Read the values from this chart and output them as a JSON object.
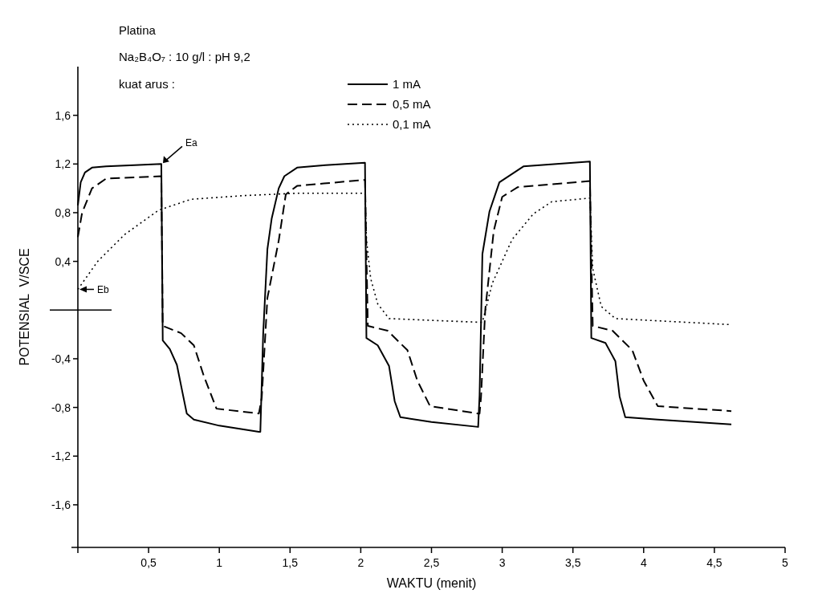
{
  "chart_data": {
    "type": "line",
    "title": "Platina",
    "subtitle": "Na₂B₄O₇ : 10 g/l : pH 9,2",
    "legend_title": "kuat arus :",
    "xlabel": "WAKTU (menit)",
    "ylabel": "POTENSIAL  V/SCE",
    "legend": "top",
    "marker": "none",
    "xlim": [
      0,
      5
    ],
    "ylim": [
      -1.95,
      2.0
    ],
    "xticks": [
      {
        "value": 0,
        "label": null
      },
      {
        "value": 0.5,
        "label": "0,5"
      },
      {
        "value": 1,
        "label": "1"
      },
      {
        "value": 1.5,
        "label": "1,5"
      },
      {
        "value": 2,
        "label": "2"
      },
      {
        "value": 2.5,
        "label": "2,5"
      },
      {
        "value": 3,
        "label": "3"
      },
      {
        "value": 3.5,
        "label": "3,5"
      },
      {
        "value": 4,
        "label": "4"
      },
      {
        "value": 4.5,
        "label": "4,5"
      },
      {
        "value": 5,
        "label": "5"
      }
    ],
    "yticks": [
      {
        "value": -1.6,
        "label": "-1,6"
      },
      {
        "value": -1.2,
        "label": "-1,2"
      },
      {
        "value": -0.8,
        "label": "-0,8"
      },
      {
        "value": -0.4,
        "label": "-0,4"
      },
      {
        "value": 0.4,
        "label": "0,4"
      },
      {
        "value": 0.8,
        "label": "0,8"
      },
      {
        "value": 1.2,
        "label": "1,2"
      },
      {
        "value": 1.6,
        "label": "1,6"
      }
    ],
    "annotations": [
      {
        "text": "Ea",
        "x": 0.59,
        "y": 1.2
      },
      {
        "text": "Eb",
        "x": 0,
        "y": 0.17
      }
    ],
    "series": [
      {
        "name": "1 mA",
        "color": "#000000",
        "line_style": "solid",
        "x": [
          0,
          0.02,
          0.05,
          0.1,
          0.2,
          0.4,
          0.59,
          0.6,
          0.65,
          0.7,
          0.74,
          0.77,
          0.82,
          1.0,
          1.28,
          1.29,
          1.31,
          1.34,
          1.37,
          1.42,
          1.46,
          1.55,
          1.75,
          2.03,
          2.04,
          2.12,
          2.2,
          2.24,
          2.28,
          2.5,
          2.83,
          2.84,
          2.86,
          2.91,
          2.98,
          3.15,
          3.62,
          3.63,
          3.73,
          3.8,
          3.83,
          3.87,
          4.1,
          4.62
        ],
        "values": [
          0.86,
          1.05,
          1.13,
          1.17,
          1.18,
          1.19,
          1.2,
          -0.25,
          -0.32,
          -0.45,
          -0.68,
          -0.85,
          -0.9,
          -0.95,
          -1.0,
          -1.0,
          -0.2,
          0.5,
          0.75,
          1.0,
          1.1,
          1.17,
          1.19,
          1.21,
          -0.23,
          -0.29,
          -0.46,
          -0.75,
          -0.88,
          -0.92,
          -0.96,
          -0.7,
          0.46,
          0.81,
          1.05,
          1.18,
          1.22,
          -0.23,
          -0.27,
          -0.42,
          -0.71,
          -0.88,
          -0.9,
          -0.94
        ]
      },
      {
        "name": "0,5 mA",
        "color": "#000000",
        "line_style": "dashed",
        "x": [
          0,
          0.03,
          0.1,
          0.2,
          0.59,
          0.6,
          0.73,
          0.82,
          0.89,
          0.98,
          1.28,
          1.3,
          1.34,
          1.42,
          1.47,
          1.55,
          1.74,
          2.03,
          2.05,
          2.19,
          2.33,
          2.4,
          2.49,
          2.83,
          2.84,
          2.85,
          2.88,
          2.94,
          3.0,
          3.11,
          3.62,
          3.64,
          3.78,
          3.92,
          4.0,
          4.1,
          4.62
        ],
        "values": [
          0.6,
          0.8,
          1.0,
          1.08,
          1.1,
          -0.13,
          -0.19,
          -0.29,
          -0.54,
          -0.81,
          -0.85,
          -0.72,
          0.1,
          0.57,
          0.95,
          1.02,
          1.04,
          1.07,
          -0.13,
          -0.17,
          -0.33,
          -0.58,
          -0.79,
          -0.85,
          -0.85,
          -0.72,
          0.0,
          0.65,
          0.93,
          1.01,
          1.06,
          -0.13,
          -0.17,
          -0.33,
          -0.58,
          -0.79,
          -0.83
        ]
      },
      {
        "name": "0,1 mA",
        "color": "#000000",
        "line_style": "dotted",
        "x": [
          0,
          0.14,
          0.33,
          0.57,
          0.8,
          1.17,
          1.55,
          2.03,
          2.04,
          2.07,
          2.12,
          2.2,
          2.83,
          2.86,
          2.93,
          3.07,
          3.22,
          3.35,
          3.62,
          3.64,
          3.7,
          3.8,
          4.62
        ],
        "values": [
          0.17,
          0.4,
          0.62,
          0.82,
          0.91,
          0.94,
          0.96,
          0.96,
          0.58,
          0.26,
          0.05,
          -0.07,
          -0.1,
          -0.1,
          0.22,
          0.58,
          0.79,
          0.89,
          0.92,
          0.34,
          0.03,
          -0.07,
          -0.12
        ]
      }
    ]
  }
}
